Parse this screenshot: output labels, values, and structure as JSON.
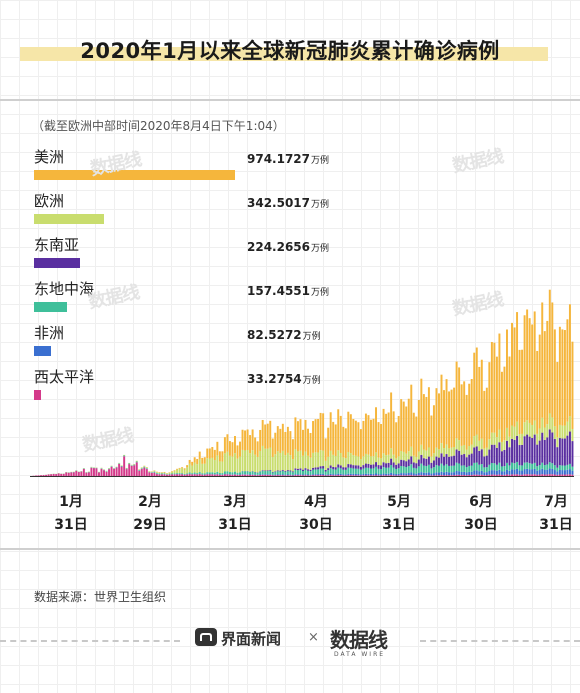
{
  "header": {
    "title": "2020年1月以来全球新冠肺炎累计确诊病例"
  },
  "note": "（截至欧洲中部时间2020年8月4日下午1:04）",
  "legend": [
    {
      "label": "美洲",
      "value": "974.1727",
      "unit": "万例",
      "color": "#f5b63c"
    },
    {
      "label": "欧洲",
      "value": "342.5017",
      "unit": "万例",
      "color": "#c9dd6e"
    },
    {
      "label": "东南亚",
      "value": "224.2656",
      "unit": "万例",
      "color": "#5a2fa0"
    },
    {
      "label": "东地中海",
      "value": "157.4551",
      "unit": "万例",
      "color": "#3fbf9a"
    },
    {
      "label": "非洲",
      "value": "82.5272",
      "unit": "万例",
      "color": "#3a6fd0"
    },
    {
      "label": "西太平洋",
      "value": "33.2754",
      "unit": "万例",
      "color": "#d43a8a"
    }
  ],
  "source": "数据来源：世界卫生组织",
  "footer": {
    "brand": "界面新闻",
    "separator": "×",
    "partner": "数据线",
    "partner_sub": "DATA WIRE"
  },
  "watermark": "数据线",
  "chart_data": {
    "type": "bar",
    "stacked": true,
    "x_tick_labels": [
      [
        "1月",
        "31日"
      ],
      [
        "2月",
        "29日"
      ],
      [
        "3月",
        "31日"
      ],
      [
        "4月",
        "30日"
      ],
      [
        "5月",
        "31日"
      ],
      [
        "6月",
        "30日"
      ],
      [
        "7月",
        "31日"
      ]
    ],
    "x_range": [
      "2020-01-01",
      "2020-08-03"
    ],
    "legend_position": "top-left",
    "grid": false,
    "series_order": [
      "西太平洋",
      "非洲",
      "东地中海",
      "东南亚",
      "欧洲",
      "美洲"
    ],
    "series": [
      {
        "name": "美洲",
        "color": "#f5b63c",
        "daily_approx": [
          [
            0,
            0
          ],
          [
            40,
            0
          ],
          [
            60,
            0.05
          ],
          [
            75,
            0.8
          ],
          [
            90,
            1.3
          ],
          [
            110,
            1.8
          ],
          [
            130,
            2.3
          ],
          [
            150,
            3.2
          ],
          [
            170,
            4.0
          ],
          [
            190,
            5.5
          ],
          [
            205,
            6.5
          ],
          [
            215,
            6.5
          ]
        ]
      },
      {
        "name": "欧洲",
        "color": "#c9dd6e",
        "daily_approx": [
          [
            0,
            0
          ],
          [
            55,
            0.05
          ],
          [
            70,
            0.8
          ],
          [
            90,
            1.3
          ],
          [
            110,
            0.9
          ],
          [
            130,
            0.6
          ],
          [
            150,
            0.5
          ],
          [
            175,
            0.6
          ],
          [
            200,
            0.8
          ],
          [
            215,
            0.9
          ]
        ]
      },
      {
        "name": "东南亚",
        "color": "#5a2fa0",
        "daily_approx": [
          [
            0,
            0
          ],
          [
            80,
            0
          ],
          [
            100,
            0.05
          ],
          [
            120,
            0.15
          ],
          [
            140,
            0.3
          ],
          [
            160,
            0.5
          ],
          [
            180,
            0.9
          ],
          [
            200,
            1.6
          ],
          [
            215,
            1.9
          ]
        ]
      },
      {
        "name": "东地中海",
        "color": "#3fbf9a",
        "daily_approx": [
          [
            0,
            0
          ],
          [
            60,
            0.05
          ],
          [
            80,
            0.15
          ],
          [
            100,
            0.2
          ],
          [
            120,
            0.3
          ],
          [
            140,
            0.4
          ],
          [
            160,
            0.45
          ],
          [
            180,
            0.4
          ],
          [
            215,
            0.3
          ]
        ]
      },
      {
        "name": "非洲",
        "color": "#3a6fd0",
        "daily_approx": [
          [
            0,
            0
          ],
          [
            80,
            0.02
          ],
          [
            110,
            0.05
          ],
          [
            140,
            0.1
          ],
          [
            170,
            0.2
          ],
          [
            200,
            0.3
          ],
          [
            215,
            0.3
          ]
        ]
      },
      {
        "name": "西太平洋",
        "color": "#d43a8a",
        "daily_approx": [
          [
            0,
            0
          ],
          [
            15,
            0.2
          ],
          [
            30,
            0.5
          ],
          [
            40,
            0.8
          ],
          [
            50,
            0.1
          ],
          [
            70,
            0.1
          ],
          [
            100,
            0.05
          ],
          [
            160,
            0.05
          ],
          [
            200,
            0.1
          ],
          [
            215,
            0.1
          ]
        ]
      }
    ]
  }
}
